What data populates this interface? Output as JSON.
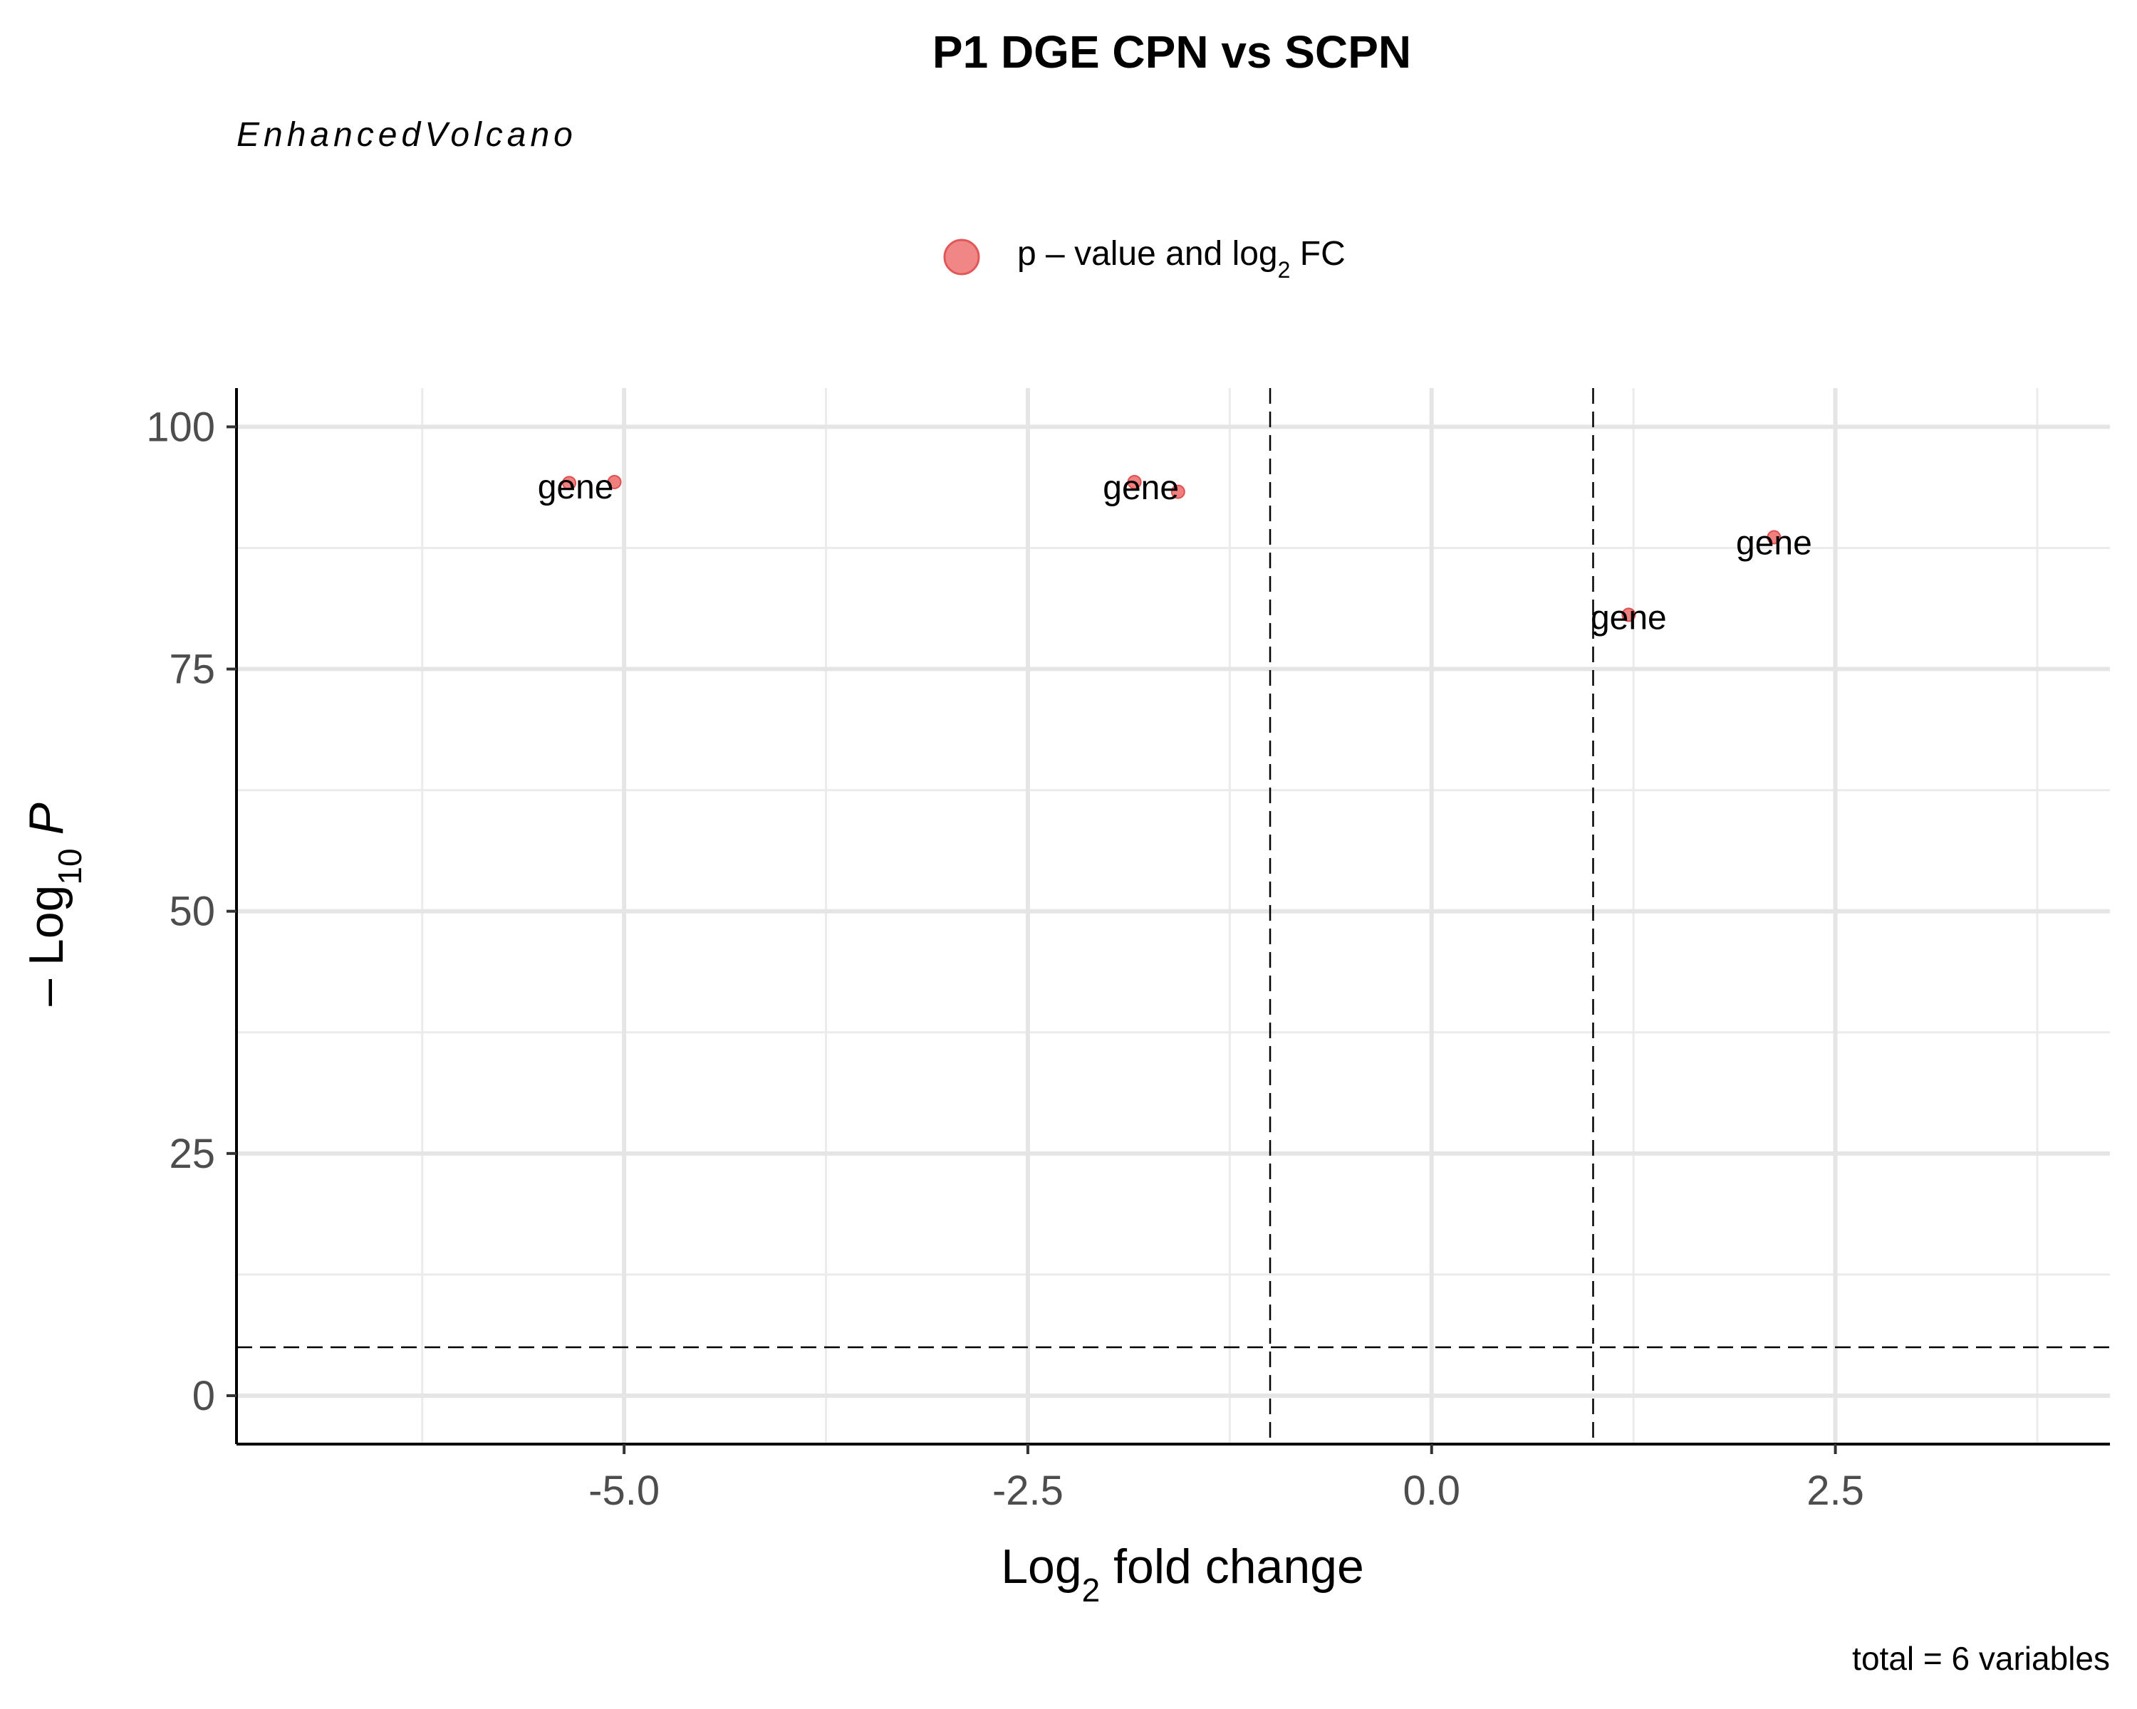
{
  "chart_data": {
    "type": "scatter",
    "title": "P1 DGE CPN vs SCPN",
    "subtitle": "EnhancedVolcano",
    "xlabel": "Log2 fold change",
    "ylabel": "-Log10 P",
    "caption": "total = 6 variables",
    "legend": {
      "placement": "top",
      "entries": [
        {
          "label": "p – value and log2 FC",
          "color": "#f08080"
        }
      ]
    },
    "xlim": [
      -7.4,
      4.2
    ],
    "ylim": [
      -5,
      104
    ],
    "x_ticks": [
      -5.0,
      -2.5,
      0.0,
      2.5
    ],
    "x_tick_labels": [
      "-5.0",
      "-2.5",
      "0.0",
      "2.5"
    ],
    "y_ticks": [
      0,
      25,
      50,
      75,
      100
    ],
    "y_tick_labels": [
      "0",
      "25",
      "50",
      "75",
      "100"
    ],
    "cutoffs": {
      "fc": [
        -1,
        1
      ],
      "p_neglog10": 5
    },
    "grid": true,
    "series": [
      {
        "color": "#f08080",
        "points": [
          {
            "x": -5.34,
            "y": 94.2
          },
          {
            "x": -5.06,
            "y": 94.3
          },
          {
            "x": -1.84,
            "y": 94.3
          },
          {
            "x": -1.57,
            "y": 93.3
          },
          {
            "x": 1.22,
            "y": 80.6
          },
          {
            "x": 2.12,
            "y": 88.6
          }
        ]
      }
    ],
    "labels": [
      {
        "text": "gene",
        "x": -5.3,
        "y": 93.8
      },
      {
        "text": "gene",
        "x": -1.8,
        "y": 93.7
      },
      {
        "text": "gene",
        "x": 1.22,
        "y": 80.3
      },
      {
        "text": "gene",
        "x": 2.12,
        "y": 88.0
      }
    ]
  }
}
